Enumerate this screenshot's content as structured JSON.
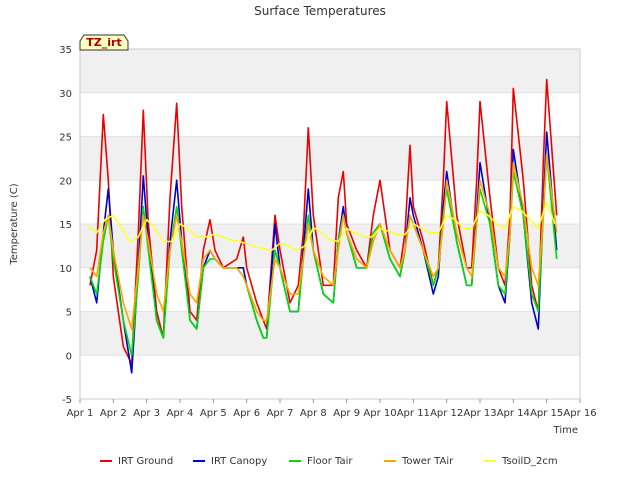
{
  "colors": {
    "IRT Ground": "#ee0000",
    "IRT Canopy": "#0000cc",
    "Floor Tair": "#00dd00",
    "Tower TAir": "#ffa500",
    "TsoilD_2cm": "#ffff33",
    "band": "#f0f0f0",
    "grid": "#dddddd"
  },
  "chart_data": {
    "type": "line",
    "title": "Surface Temperatures",
    "xlabel": "Time",
    "ylabel": "Temperature (C)",
    "badge": "TZ_irt",
    "xlim": [
      1,
      16
    ],
    "ylim": [
      -5,
      35
    ],
    "x_ticks": [
      {
        "x": 1,
        "label": "Apr 1"
      },
      {
        "x": 2,
        "label": "Apr 2"
      },
      {
        "x": 3,
        "label": "Apr 3"
      },
      {
        "x": 4,
        "label": "Apr 4"
      },
      {
        "x": 5,
        "label": "Apr 5"
      },
      {
        "x": 6,
        "label": "Apr 6"
      },
      {
        "x": 7,
        "label": "Apr 7"
      },
      {
        "x": 8,
        "label": "Apr 8"
      },
      {
        "x": 9,
        "label": "Apr 9"
      },
      {
        "x": 10,
        "label": "Apr 10"
      },
      {
        "x": 11,
        "label": "Apr 11"
      },
      {
        "x": 12,
        "label": "Apr 12"
      },
      {
        "x": 13,
        "label": "Apr 13"
      },
      {
        "x": 14,
        "label": "Apr 14"
      },
      {
        "x": 15,
        "label": "Apr 15"
      },
      {
        "x": 16,
        "label": "Apr 16"
      }
    ],
    "y_ticks": [
      -5,
      0,
      5,
      10,
      15,
      20,
      25,
      30,
      35
    ],
    "grid": true,
    "legend_position": "bottom",
    "series": [
      {
        "name": "IRT Ground",
        "x": [
          1.3,
          1.5,
          1.7,
          1.85,
          2.0,
          2.3,
          2.55,
          2.75,
          2.9,
          3.05,
          3.3,
          3.5,
          3.7,
          3.9,
          4.05,
          4.3,
          4.5,
          4.7,
          4.9,
          5.05,
          5.3,
          5.5,
          5.7,
          5.9,
          6.0,
          6.3,
          6.5,
          6.6,
          6.85,
          7.0,
          7.3,
          7.55,
          7.7,
          7.85,
          8.0,
          8.3,
          8.6,
          8.75,
          8.9,
          9.0,
          9.3,
          9.6,
          9.8,
          10.0,
          10.3,
          10.6,
          10.75,
          10.9,
          11.0,
          11.3,
          11.6,
          11.75,
          11.9,
          12.0,
          12.3,
          12.6,
          12.75,
          12.9,
          13.0,
          13.3,
          13.55,
          13.75,
          13.9,
          14.0,
          14.3,
          14.55,
          14.75,
          14.9,
          15.0,
          15.3
        ],
        "y": [
          8,
          12,
          27.5,
          20,
          9,
          1,
          -1,
          14,
          28,
          15,
          5,
          2,
          18,
          28.8,
          17,
          5,
          4,
          12,
          15.5,
          12,
          10,
          10.5,
          11,
          13.5,
          10,
          6,
          4,
          3,
          16,
          12,
          6,
          8,
          14,
          26,
          16,
          8,
          8,
          18,
          21,
          15,
          12,
          10,
          16,
          20,
          12,
          10,
          14,
          24,
          17,
          13,
          8,
          10,
          20,
          29,
          16,
          10,
          10,
          20,
          29,
          18,
          10,
          8,
          16,
          30.5,
          20,
          8,
          5,
          22,
          31.5,
          16
        ]
      },
      {
        "name": "IRT Canopy",
        "x": [
          1.3,
          1.5,
          1.7,
          1.85,
          2.0,
          2.3,
          2.55,
          2.75,
          2.9,
          3.05,
          3.3,
          3.5,
          3.7,
          3.9,
          4.05,
          4.3,
          4.5,
          4.7,
          4.9,
          5.05,
          5.3,
          5.5,
          5.7,
          5.9,
          6.0,
          6.3,
          6.5,
          6.6,
          6.85,
          7.0,
          7.3,
          7.55,
          7.7,
          7.85,
          8.0,
          8.3,
          8.6,
          8.75,
          8.9,
          9.0,
          9.3,
          9.6,
          9.8,
          10.0,
          10.3,
          10.6,
          10.75,
          10.9,
          11.0,
          11.3,
          11.6,
          11.75,
          11.9,
          12.0,
          12.3,
          12.6,
          12.75,
          12.9,
          13.0,
          13.3,
          13.55,
          13.75,
          13.9,
          14.0,
          14.3,
          14.55,
          14.75,
          14.9,
          15.0,
          15.3
        ],
        "y": [
          9,
          6,
          14,
          19,
          12,
          4,
          -2,
          10,
          20.5,
          13,
          4,
          2,
          13,
          20,
          13,
          4,
          3,
          10,
          12,
          11,
          10,
          10,
          10,
          10,
          8,
          4,
          2,
          2,
          15,
          10,
          5,
          5,
          12,
          19,
          12,
          7,
          6,
          13,
          17,
          14,
          10,
          10,
          14,
          15,
          11,
          9,
          12,
          18,
          16,
          12,
          7,
          9,
          17,
          21,
          13,
          8,
          8,
          16,
          22,
          15,
          8,
          6,
          14,
          23.5,
          16,
          6,
          3,
          17,
          25.5,
          12
        ]
      },
      {
        "name": "Floor Tair",
        "x": [
          1.3,
          1.5,
          1.7,
          1.85,
          2.0,
          2.3,
          2.55,
          2.75,
          2.9,
          3.05,
          3.3,
          3.5,
          3.7,
          3.9,
          4.05,
          4.3,
          4.5,
          4.7,
          4.9,
          5.05,
          5.3,
          5.5,
          5.7,
          5.9,
          6.0,
          6.3,
          6.5,
          6.6,
          6.85,
          7.0,
          7.3,
          7.55,
          7.7,
          7.85,
          8.0,
          8.3,
          8.6,
          8.75,
          8.9,
          9.0,
          9.3,
          9.6,
          9.8,
          10.0,
          10.3,
          10.6,
          10.75,
          10.9,
          11.0,
          11.3,
          11.6,
          11.75,
          11.9,
          12.0,
          12.3,
          12.6,
          12.75,
          12.9,
          13.0,
          13.3,
          13.55,
          13.75,
          13.9,
          14.0,
          14.3,
          14.55,
          14.75,
          14.9,
          15.0,
          15.3
        ],
        "y": [
          9,
          7,
          13,
          16,
          11,
          4,
          0,
          9,
          17,
          12,
          4,
          2,
          12,
          17,
          12,
          4,
          3,
          10,
          11,
          11,
          10,
          10,
          10,
          9,
          8,
          4,
          2,
          2,
          12,
          10,
          5,
          5,
          11,
          16,
          12,
          7,
          6,
          13,
          16,
          14,
          10,
          10,
          14,
          15,
          11,
          9,
          12,
          16,
          15,
          12,
          8,
          10,
          16,
          19,
          13,
          8,
          8,
          15,
          19,
          15,
          8,
          7,
          14,
          21,
          16,
          7,
          5,
          16,
          23,
          11
        ]
      },
      {
        "name": "Tower TAir",
        "x": [
          1.3,
          1.5,
          1.7,
          1.85,
          2.0,
          2.3,
          2.55,
          2.75,
          2.9,
          3.05,
          3.3,
          3.5,
          3.7,
          3.9,
          4.05,
          4.3,
          4.5,
          4.7,
          4.9,
          5.05,
          5.3,
          5.5,
          5.7,
          5.9,
          6.0,
          6.3,
          6.5,
          6.6,
          6.85,
          7.0,
          7.3,
          7.55,
          7.7,
          7.85,
          8.0,
          8.3,
          8.6,
          8.75,
          8.9,
          9.0,
          9.3,
          9.6,
          9.8,
          10.0,
          10.3,
          10.6,
          10.75,
          10.9,
          11.0,
          11.3,
          11.6,
          11.75,
          11.9,
          12.0,
          12.3,
          12.6,
          12.75,
          12.9,
          13.0,
          13.3,
          13.55,
          13.75,
          13.9,
          14.0,
          14.3,
          14.55,
          14.75,
          14.9,
          15.0,
          15.3
        ],
        "y": [
          10,
          9,
          14,
          16,
          12,
          6,
          3,
          10,
          16,
          13,
          7,
          5,
          12,
          16,
          13,
          7,
          6,
          11,
          12,
          11,
          10,
          10,
          10,
          9,
          8,
          5,
          4,
          4,
          11,
          10,
          7,
          7,
          11,
          15,
          12,
          9,
          8,
          12,
          16,
          14,
          11,
          10,
          13,
          15,
          12,
          10,
          12,
          16,
          15,
          12,
          9,
          10,
          15,
          20,
          14,
          10,
          9,
          15,
          20,
          16,
          10,
          9,
          14,
          22,
          17,
          10,
          8,
          16,
          23,
          14
        ]
      },
      {
        "name": "TsoilD_2cm",
        "x": [
          1.25,
          1.5,
          1.75,
          2.0,
          2.25,
          2.5,
          2.75,
          3.0,
          3.25,
          3.5,
          3.75,
          4.0,
          4.25,
          4.5,
          4.75,
          5.0,
          5.25,
          5.5,
          5.75,
          6.0,
          6.25,
          6.5,
          6.75,
          7.0,
          7.25,
          7.5,
          7.75,
          8.0,
          8.25,
          8.5,
          8.75,
          9.0,
          9.25,
          9.5,
          9.75,
          10.0,
          10.25,
          10.5,
          10.75,
          11.0,
          11.25,
          11.5,
          11.75,
          12.0,
          12.25,
          12.5,
          12.75,
          13.0,
          13.25,
          13.5,
          13.75,
          14.0,
          14.25,
          14.5,
          14.75,
          15.0,
          15.25
        ],
        "y": [
          14.8,
          14,
          15.5,
          16,
          14.5,
          13,
          13.5,
          15.5,
          14.5,
          13,
          13,
          15,
          14.5,
          13.5,
          13.5,
          13.8,
          13.6,
          13.2,
          13,
          12.8,
          12.4,
          12.2,
          12,
          12.8,
          12.5,
          12,
          12.5,
          14.6,
          14,
          13.2,
          13,
          14.5,
          14,
          13.5,
          13.5,
          14.5,
          14.2,
          13.8,
          13.8,
          15,
          14.5,
          14,
          14,
          16,
          15.5,
          14.5,
          14.5,
          16.5,
          16,
          15,
          14.5,
          17,
          16.5,
          15.5,
          14.5,
          17.5,
          15
        ]
      }
    ]
  }
}
